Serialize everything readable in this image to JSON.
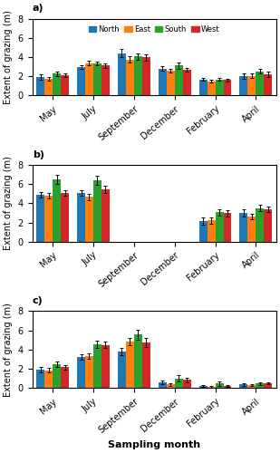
{
  "chart_data": [
    {
      "type": "bar",
      "title": "a)",
      "categories": [
        "May",
        "July",
        "September",
        "December",
        "February",
        "April"
      ],
      "y_label": "Extent of grazing (m)",
      "ylim": [
        0,
        8
      ],
      "yticks": [
        0,
        2,
        4,
        6,
        8
      ],
      "legend": "upper center",
      "series": [
        {
          "name": "North",
          "values": [
            1.9,
            2.95,
            4.4,
            2.8,
            1.65,
            2.0
          ],
          "errors": [
            0.25,
            0.2,
            0.45,
            0.2,
            0.15,
            0.3
          ]
        },
        {
          "name": "East",
          "values": [
            1.75,
            3.35,
            3.75,
            2.6,
            1.45,
            2.05
          ],
          "errors": [
            0.2,
            0.25,
            0.3,
            0.2,
            0.15,
            0.2
          ]
        },
        {
          "name": "South",
          "values": [
            2.25,
            3.35,
            4.05,
            3.1,
            1.65,
            2.5
          ],
          "errors": [
            0.25,
            0.2,
            0.35,
            0.3,
            0.15,
            0.25
          ]
        },
        {
          "name": "West",
          "values": [
            2.1,
            3.1,
            3.95,
            2.7,
            1.6,
            2.2
          ],
          "errors": [
            0.2,
            0.2,
            0.35,
            0.2,
            0.15,
            0.25
          ]
        }
      ]
    },
    {
      "type": "bar",
      "title": "b)",
      "categories": [
        "May",
        "July",
        "September",
        "December",
        "February",
        "April"
      ],
      "y_label": "Extent of grazing (m)",
      "ylim": [
        0,
        8
      ],
      "yticks": [
        0,
        2,
        4,
        6,
        8
      ],
      "series": [
        {
          "name": "North",
          "values": [
            4.9,
            5.1,
            null,
            null,
            2.15,
            3.0
          ],
          "errors": [
            0.3,
            0.3,
            null,
            null,
            0.35,
            0.35
          ]
        },
        {
          "name": "East",
          "values": [
            4.8,
            4.65,
            null,
            null,
            2.2,
            2.6
          ],
          "errors": [
            0.3,
            0.3,
            null,
            null,
            0.3,
            0.3
          ]
        },
        {
          "name": "South",
          "values": [
            6.5,
            6.4,
            null,
            null,
            3.05,
            3.5
          ],
          "errors": [
            0.5,
            0.45,
            null,
            null,
            0.35,
            0.35
          ]
        },
        {
          "name": "West",
          "values": [
            5.1,
            5.45,
            null,
            null,
            2.95,
            3.35
          ],
          "errors": [
            0.3,
            0.35,
            null,
            null,
            0.3,
            0.3
          ]
        }
      ]
    },
    {
      "type": "bar",
      "title": "c)",
      "categories": [
        "May",
        "July",
        "September",
        "December",
        "February",
        "April"
      ],
      "x_label": "Sampling month",
      "y_label": "Extent of grazing (m)",
      "ylim": [
        0,
        8
      ],
      "yticks": [
        0,
        2,
        4,
        6,
        8
      ],
      "series": [
        {
          "name": "North",
          "values": [
            1.9,
            3.2,
            3.8,
            0.6,
            0.2,
            0.35
          ],
          "errors": [
            0.3,
            0.3,
            0.35,
            0.2,
            0.1,
            0.1
          ]
        },
        {
          "name": "East",
          "values": [
            1.85,
            3.35,
            4.85,
            0.35,
            0.1,
            0.3
          ],
          "errors": [
            0.25,
            0.3,
            0.4,
            0.15,
            0.08,
            0.1
          ]
        },
        {
          "name": "South",
          "values": [
            2.5,
            4.55,
            5.55,
            1.0,
            0.45,
            0.45
          ],
          "errors": [
            0.3,
            0.35,
            0.55,
            0.35,
            0.2,
            0.15
          ]
        },
        {
          "name": "West",
          "values": [
            2.15,
            4.5,
            4.75,
            0.85,
            0.2,
            0.45
          ],
          "errors": [
            0.25,
            0.35,
            0.45,
            0.25,
            0.1,
            0.1
          ]
        }
      ]
    }
  ]
}
